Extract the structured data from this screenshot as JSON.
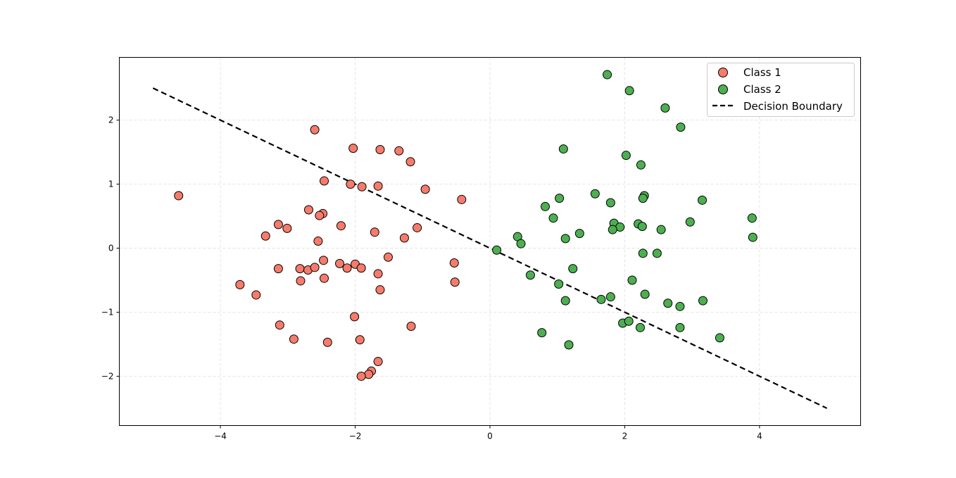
{
  "chart_data": {
    "type": "scatter",
    "title": "",
    "xlabel": "",
    "ylabel": "",
    "xlim": [
      -5.5,
      5.5
    ],
    "ylim": [
      -2.77,
      2.98
    ],
    "grid": true,
    "legend_position": "upper right",
    "x_ticks": [
      -4,
      -2,
      0,
      2,
      4
    ],
    "y_ticks": [
      -2,
      -1,
      0,
      1,
      2
    ],
    "x_tick_labels": [
      "−4",
      "−2",
      "0",
      "2",
      "4"
    ],
    "y_tick_labels": [
      "−2",
      "−1",
      "0",
      "1",
      "2"
    ],
    "series": [
      {
        "name": "Class 1",
        "color": "#f77b6b",
        "edgecolor": "#000000",
        "points": [
          [
            -4.62,
            0.82
          ],
          [
            -2.6,
            1.85
          ],
          [
            -2.03,
            1.56
          ],
          [
            -1.63,
            1.54
          ],
          [
            -1.35,
            1.52
          ],
          [
            -1.18,
            1.35
          ],
          [
            -2.46,
            1.05
          ],
          [
            -2.07,
            1.0
          ],
          [
            -1.9,
            0.96
          ],
          [
            -1.66,
            0.97
          ],
          [
            -0.96,
            0.92
          ],
          [
            -0.42,
            0.76
          ],
          [
            -2.69,
            0.6
          ],
          [
            -2.48,
            0.54
          ],
          [
            -2.53,
            0.51
          ],
          [
            -3.01,
            0.31
          ],
          [
            -2.21,
            0.35
          ],
          [
            -1.71,
            0.25
          ],
          [
            -1.08,
            0.32
          ],
          [
            -3.33,
            0.19
          ],
          [
            -3.14,
            0.37
          ],
          [
            -1.27,
            0.16
          ],
          [
            -2.55,
            0.11
          ],
          [
            -1.51,
            -0.14
          ],
          [
            -0.53,
            -0.23
          ],
          [
            -3.14,
            -0.32
          ],
          [
            -2.82,
            -0.32
          ],
          [
            -2.7,
            -0.34
          ],
          [
            -2.6,
            -0.3
          ],
          [
            -2.23,
            -0.24
          ],
          [
            -2.47,
            -0.19
          ],
          [
            -2.12,
            -0.31
          ],
          [
            -2.0,
            -0.25
          ],
          [
            -1.91,
            -0.31
          ],
          [
            -1.66,
            -0.4
          ],
          [
            -2.46,
            -0.47
          ],
          [
            -2.81,
            -0.51
          ],
          [
            -3.71,
            -0.57
          ],
          [
            -3.47,
            -0.73
          ],
          [
            -1.63,
            -0.65
          ],
          [
            -0.52,
            -0.53
          ],
          [
            -2.01,
            -1.07
          ],
          [
            -3.12,
            -1.2
          ],
          [
            -1.17,
            -1.22
          ],
          [
            -2.91,
            -1.42
          ],
          [
            -2.41,
            -1.47
          ],
          [
            -1.93,
            -1.43
          ],
          [
            -1.66,
            -1.77
          ],
          [
            -1.76,
            -1.92
          ],
          [
            -1.8,
            -1.97
          ],
          [
            -1.91,
            -2.0
          ]
        ]
      },
      {
        "name": "Class 2",
        "color": "#4caf50",
        "edgecolor": "#000000",
        "points": [
          [
            1.74,
            2.71
          ],
          [
            2.07,
            2.46
          ],
          [
            2.6,
            2.19
          ],
          [
            2.83,
            1.89
          ],
          [
            1.09,
            1.55
          ],
          [
            2.02,
            1.45
          ],
          [
            2.24,
            1.3
          ],
          [
            1.56,
            0.85
          ],
          [
            2.29,
            0.82
          ],
          [
            2.27,
            0.78
          ],
          [
            1.03,
            0.78
          ],
          [
            1.79,
            0.71
          ],
          [
            3.15,
            0.75
          ],
          [
            0.82,
            0.65
          ],
          [
            0.94,
            0.47
          ],
          [
            3.89,
            0.47
          ],
          [
            1.84,
            0.39
          ],
          [
            1.93,
            0.33
          ],
          [
            2.2,
            0.38
          ],
          [
            2.26,
            0.34
          ],
          [
            1.82,
            0.29
          ],
          [
            2.54,
            0.29
          ],
          [
            2.97,
            0.41
          ],
          [
            1.33,
            0.23
          ],
          [
            1.12,
            0.15
          ],
          [
            0.41,
            0.18
          ],
          [
            0.46,
            0.07
          ],
          [
            3.9,
            0.17
          ],
          [
            0.1,
            -0.03
          ],
          [
            2.27,
            -0.08
          ],
          [
            2.48,
            -0.08
          ],
          [
            1.23,
            -0.32
          ],
          [
            0.6,
            -0.42
          ],
          [
            1.02,
            -0.56
          ],
          [
            2.11,
            -0.5
          ],
          [
            1.79,
            -0.76
          ],
          [
            1.65,
            -0.8
          ],
          [
            2.3,
            -0.72
          ],
          [
            1.12,
            -0.82
          ],
          [
            2.64,
            -0.86
          ],
          [
            2.82,
            -0.91
          ],
          [
            3.16,
            -0.82
          ],
          [
            1.97,
            -1.17
          ],
          [
            2.06,
            -1.14
          ],
          [
            2.23,
            -1.24
          ],
          [
            2.82,
            -1.24
          ],
          [
            0.77,
            -1.32
          ],
          [
            3.41,
            -1.4
          ],
          [
            1.17,
            -1.51
          ]
        ]
      },
      {
        "name": "Decision Boundary",
        "color": "#000000",
        "style": "dashed",
        "line": [
          [
            -5,
            2.5
          ],
          [
            5,
            -2.5
          ]
        ]
      }
    ]
  },
  "legend": {
    "items": [
      {
        "label": "Class 1",
        "marker": "circle",
        "color": "#f77b6b"
      },
      {
        "label": "Class 2",
        "marker": "circle",
        "color": "#4caf50"
      },
      {
        "label": "Decision Boundary",
        "marker": "dashed-line",
        "color": "#000000"
      }
    ]
  }
}
